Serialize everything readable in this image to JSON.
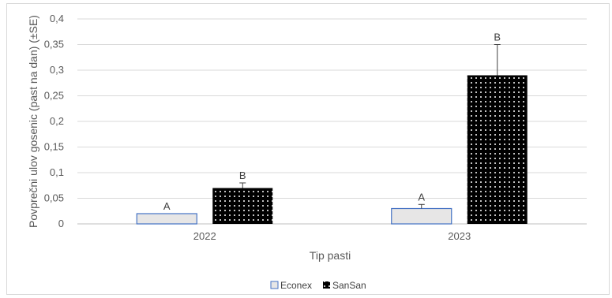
{
  "chart_data": {
    "type": "bar",
    "categories": [
      "2022",
      "2023"
    ],
    "series": [
      {
        "name": "Econex",
        "values": [
          0.02,
          0.03
        ],
        "errors": [
          0.0,
          0.008
        ],
        "labels": [
          "A",
          "A"
        ],
        "color": "#e7e6e6",
        "border": "#4472c4"
      },
      {
        "name": "SanSan",
        "values": [
          0.07,
          0.29
        ],
        "errors": [
          0.01,
          0.06
        ],
        "labels": [
          "B",
          "B"
        ],
        "color": "#000000",
        "pattern": "white-dots"
      }
    ],
    "xlabel": "Tip pasti",
    "ylabel": "Povprečni ulov gosenic (past na dan) (±SE)",
    "ylim": [
      0,
      0.4
    ],
    "yticks": [
      "0",
      "0,05",
      "0,1",
      "0,15",
      "0,2",
      "0,25",
      "0,3",
      "0,35",
      "0,4"
    ],
    "ytick_values": [
      0,
      0.05,
      0.1,
      0.15,
      0.2,
      0.25,
      0.3,
      0.35,
      0.4
    ],
    "grid": true,
    "legend_position": "bottom"
  }
}
